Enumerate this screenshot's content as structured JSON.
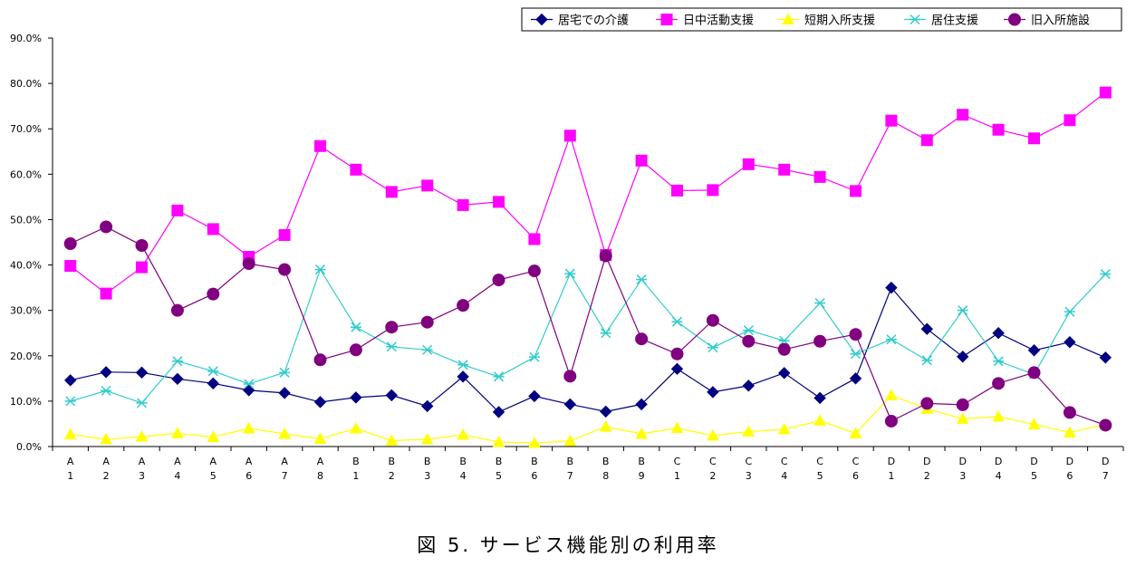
{
  "caption": "図 5. サービス機能別の利用率",
  "chart_data": {
    "type": "line",
    "categories": [
      [
        "A",
        "1"
      ],
      [
        "A",
        "2"
      ],
      [
        "A",
        "3"
      ],
      [
        "A",
        "4"
      ],
      [
        "A",
        "5"
      ],
      [
        "A",
        "6"
      ],
      [
        "A",
        "7"
      ],
      [
        "A",
        "8"
      ],
      [
        "B",
        "1"
      ],
      [
        "B",
        "2"
      ],
      [
        "B",
        "3"
      ],
      [
        "B",
        "4"
      ],
      [
        "B",
        "5"
      ],
      [
        "B",
        "6"
      ],
      [
        "B",
        "7"
      ],
      [
        "B",
        "8"
      ],
      [
        "B",
        "9"
      ],
      [
        "C",
        "1"
      ],
      [
        "C",
        "2"
      ],
      [
        "C",
        "3"
      ],
      [
        "C",
        "4"
      ],
      [
        "C",
        "5"
      ],
      [
        "C",
        "6"
      ],
      [
        "D",
        "1"
      ],
      [
        "D",
        "2"
      ],
      [
        "D",
        "3"
      ],
      [
        "D",
        "4"
      ],
      [
        "D",
        "5"
      ],
      [
        "D",
        "6"
      ],
      [
        "D",
        "7"
      ]
    ],
    "ylim": [
      0,
      90
    ],
    "yticks": [
      "0.0%",
      "10.0%",
      "20.0%",
      "30.0%",
      "40.0%",
      "50.0%",
      "60.0%",
      "70.0%",
      "80.0%",
      "90.0%"
    ],
    "legend_position": "top-right",
    "grid": false,
    "series": [
      {
        "name": "居宅での介護",
        "color": "#000080",
        "marker": "diamond",
        "values": [
          14.6,
          16.4,
          16.3,
          14.9,
          13.9,
          12.4,
          11.8,
          9.8,
          10.8,
          11.3,
          8.9,
          15.4,
          7.6,
          11.1,
          9.3,
          7.7,
          9.3,
          17.1,
          12.0,
          13.4,
          16.2,
          10.7,
          15.0,
          35.0,
          25.9,
          19.8,
          25.0,
          21.2,
          23.0,
          19.6
        ]
      },
      {
        "name": "日中活動支援",
        "color": "#FF00FF",
        "marker": "square",
        "values": [
          39.8,
          33.7,
          39.5,
          52.0,
          47.9,
          41.8,
          46.6,
          66.2,
          61.0,
          56.1,
          57.5,
          53.2,
          53.9,
          45.7,
          68.5,
          42.2,
          63.0,
          56.4,
          56.5,
          62.2,
          61.0,
          59.4,
          56.3,
          71.8,
          67.5,
          73.1,
          69.8,
          67.9,
          71.9,
          78.0
        ]
      },
      {
        "name": "短期入所支援",
        "color": "#FFFF00",
        "marker": "triangle",
        "values": [
          2.7,
          1.6,
          2.2,
          2.9,
          2.1,
          4.0,
          2.8,
          1.7,
          4.0,
          1.3,
          1.6,
          2.6,
          1.0,
          0.8,
          1.2,
          4.4,
          2.8,
          4.1,
          2.4,
          3.3,
          3.8,
          5.7,
          2.9,
          11.3,
          8.3,
          6.1,
          6.6,
          4.9,
          3.1,
          4.9
        ]
      },
      {
        "name": "居住支援",
        "color": "#33CCCC",
        "marker": "asterisk",
        "values": [
          10.0,
          12.3,
          9.6,
          18.8,
          16.6,
          13.8,
          16.3,
          39.0,
          26.3,
          22.0,
          21.3,
          18.0,
          15.4,
          19.7,
          38.1,
          25.0,
          36.8,
          27.5,
          21.8,
          25.6,
          23.3,
          31.6,
          20.4,
          23.6,
          19.0,
          30.0,
          18.8,
          15.9,
          29.7,
          38.0
        ]
      },
      {
        "name": "旧入所施設",
        "color": "#800080",
        "marker": "circle",
        "values": [
          44.7,
          48.4,
          44.3,
          30.0,
          33.6,
          40.3,
          39.0,
          19.1,
          21.3,
          26.3,
          27.4,
          31.1,
          36.7,
          38.7,
          15.5,
          42.0,
          23.7,
          20.4,
          27.8,
          23.2,
          21.4,
          23.2,
          24.7,
          5.6,
          9.5,
          9.2,
          13.9,
          16.3,
          7.5,
          4.7
        ]
      }
    ]
  }
}
